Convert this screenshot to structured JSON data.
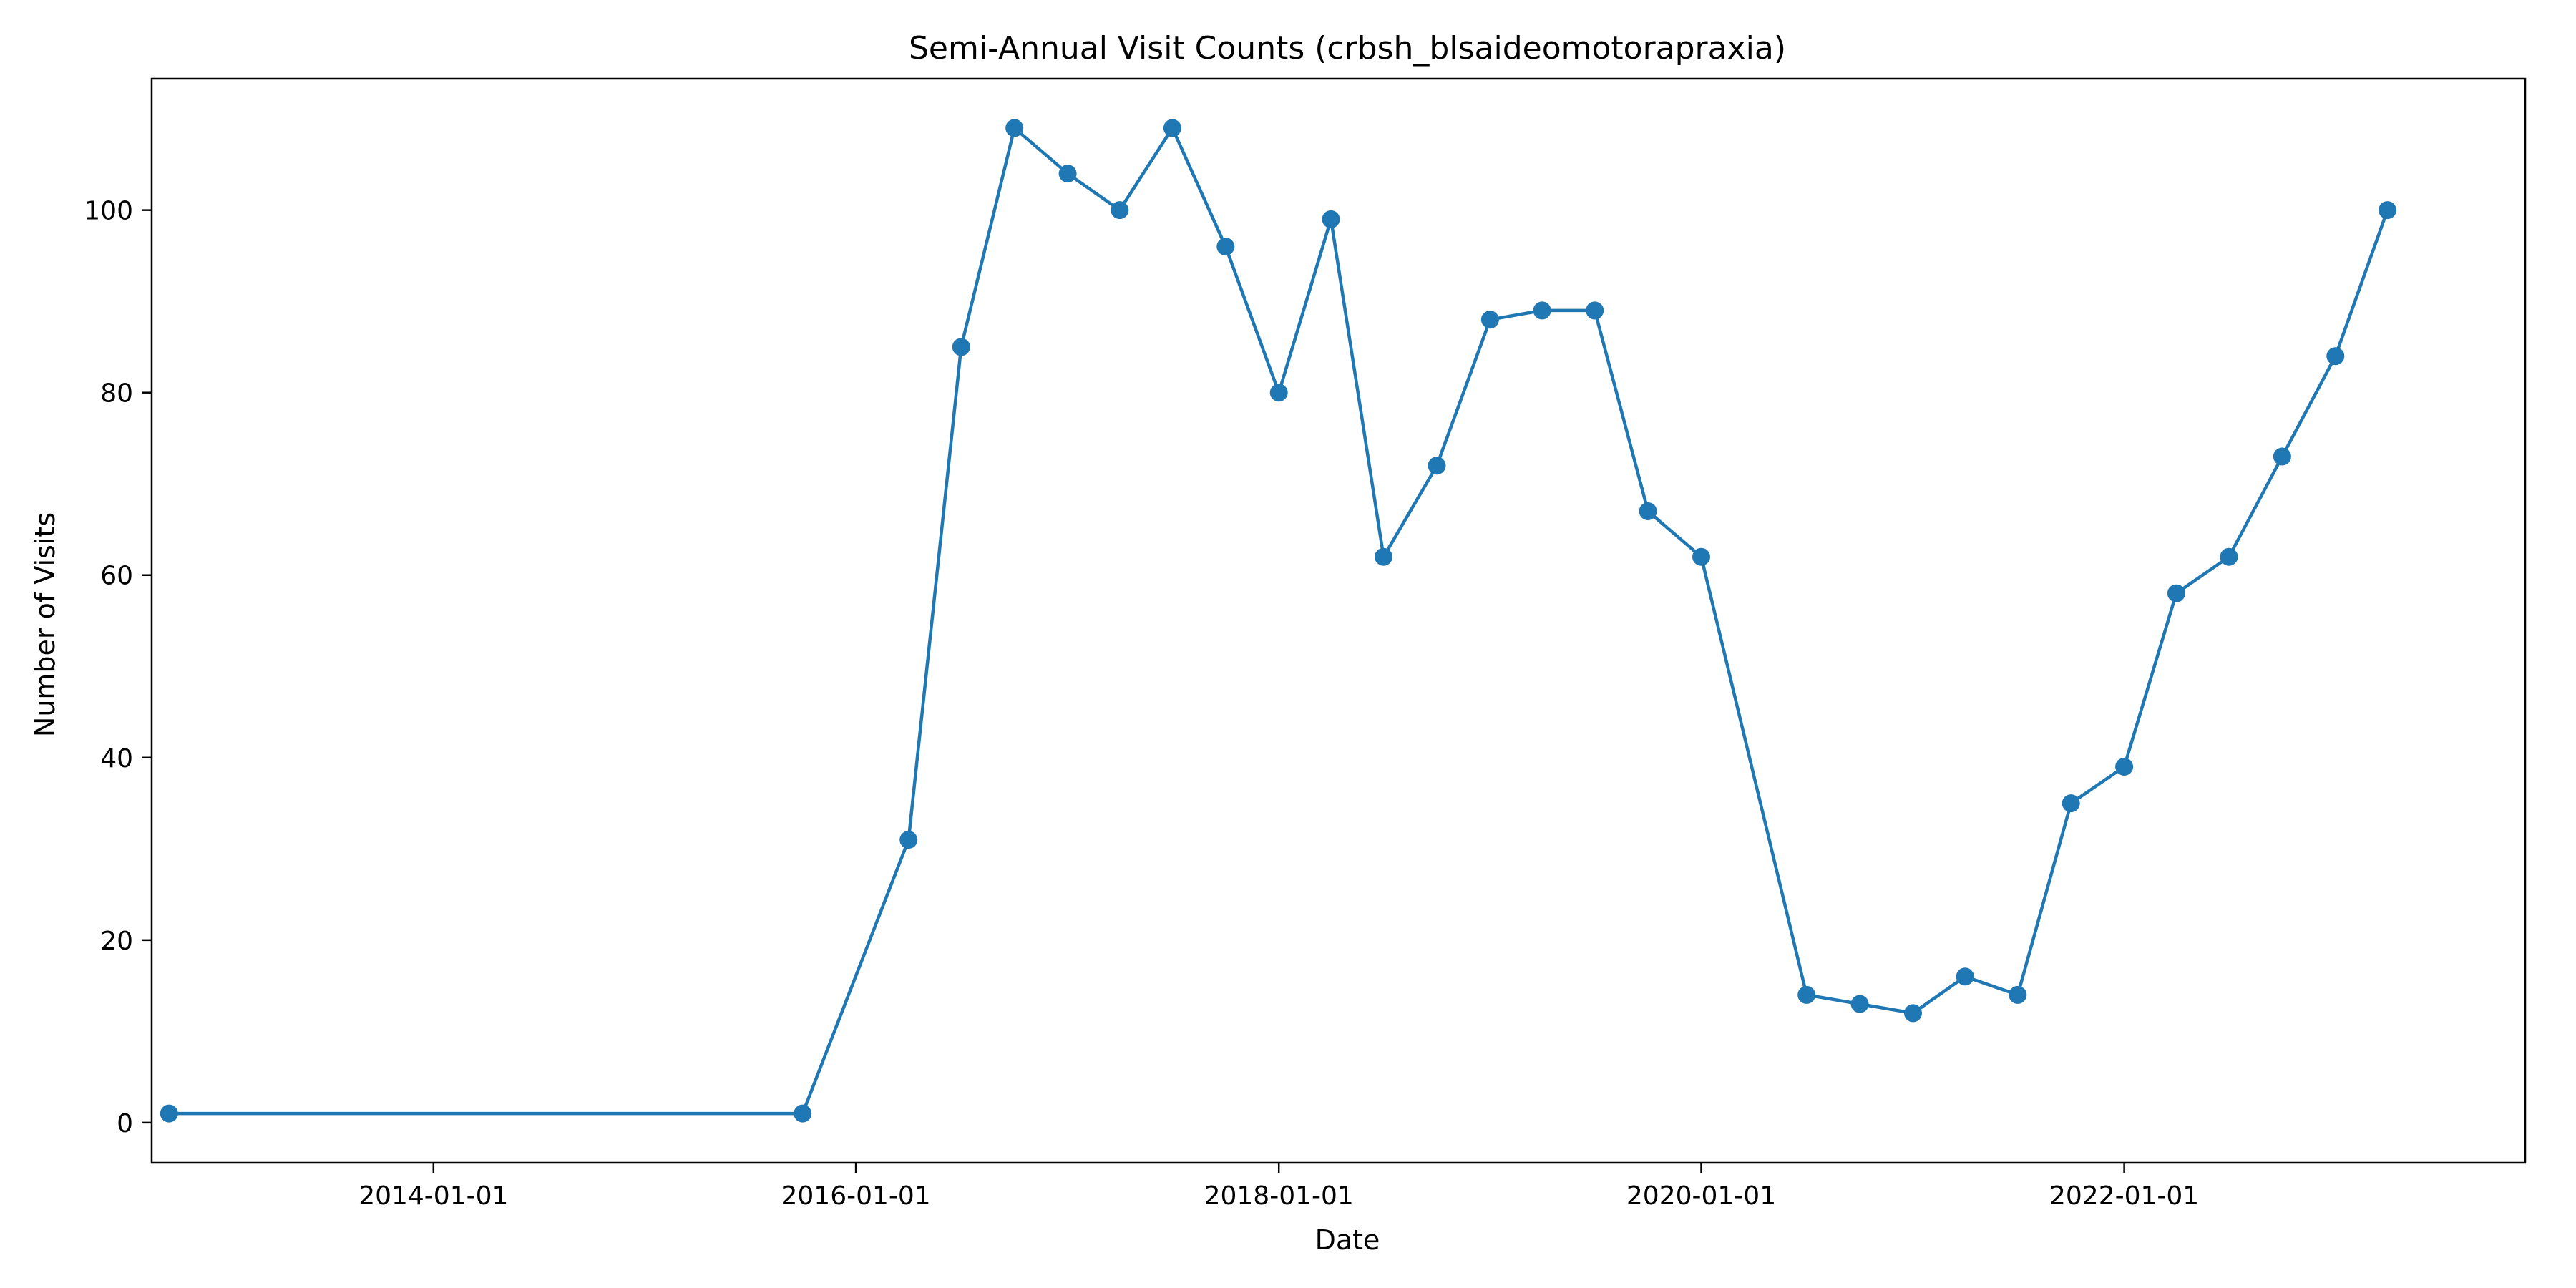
{
  "chart_data": {
    "type": "line",
    "title": "Semi-Annual Visit Counts (crbsh_blsaideomotorapraxia)",
    "xlabel": "Date",
    "ylabel": "Number of Visits",
    "x_axis_type": "date",
    "xlim": [
      "2012-09-01",
      "2023-11-25"
    ],
    "ylim": [
      -4.4,
      114.4
    ],
    "x_ticks": [
      "2014-01-01",
      "2016-01-01",
      "2018-01-01",
      "2020-01-01",
      "2022-01-01"
    ],
    "y_ticks": [
      0,
      20,
      40,
      60,
      80,
      100
    ],
    "grid": false,
    "legend": "none",
    "series": [
      {
        "color": "#1f77b4",
        "marker": "circle",
        "points": [
          {
            "x": "2012-10-01",
            "y": 1
          },
          {
            "x": "2015-10-01",
            "y": 1
          },
          {
            "x": "2016-04-01",
            "y": 31
          },
          {
            "x": "2016-07-01",
            "y": 85
          },
          {
            "x": "2016-10-01",
            "y": 109
          },
          {
            "x": "2017-01-01",
            "y": 104
          },
          {
            "x": "2017-04-01",
            "y": 100
          },
          {
            "x": "2017-07-01",
            "y": 109
          },
          {
            "x": "2017-10-01",
            "y": 96
          },
          {
            "x": "2018-01-01",
            "y": 80
          },
          {
            "x": "2018-04-01",
            "y": 99
          },
          {
            "x": "2018-07-01",
            "y": 62
          },
          {
            "x": "2018-10-01",
            "y": 72
          },
          {
            "x": "2019-01-01",
            "y": 88
          },
          {
            "x": "2019-04-01",
            "y": 89
          },
          {
            "x": "2019-07-01",
            "y": 89
          },
          {
            "x": "2019-10-01",
            "y": 67
          },
          {
            "x": "2020-01-01",
            "y": 62
          },
          {
            "x": "2020-07-01",
            "y": 14
          },
          {
            "x": "2020-10-01",
            "y": 13
          },
          {
            "x": "2021-01-01",
            "y": 12
          },
          {
            "x": "2021-04-01",
            "y": 16
          },
          {
            "x": "2021-07-01",
            "y": 14
          },
          {
            "x": "2021-10-01",
            "y": 35
          },
          {
            "x": "2022-01-01",
            "y": 39
          },
          {
            "x": "2022-04-01",
            "y": 58
          },
          {
            "x": "2022-07-01",
            "y": 62
          },
          {
            "x": "2022-10-01",
            "y": 73
          },
          {
            "x": "2023-01-01",
            "y": 84
          },
          {
            "x": "2023-04-01",
            "y": 100
          }
        ]
      }
    ]
  }
}
